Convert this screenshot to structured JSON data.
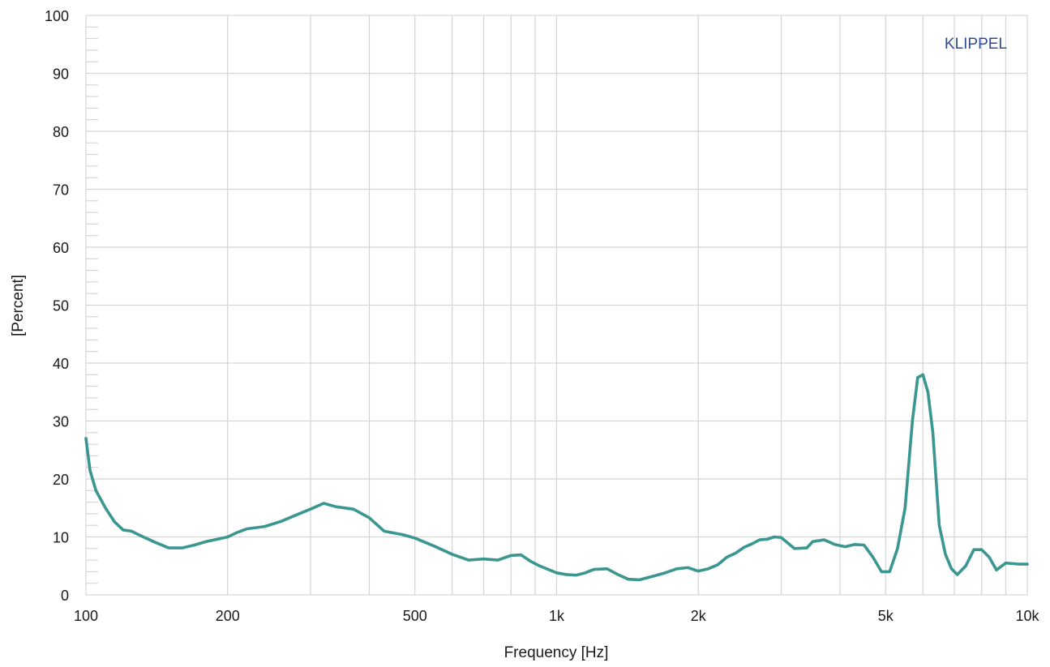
{
  "chart_data": {
    "type": "line",
    "title": "",
    "xlabel": "Frequency [Hz]",
    "ylabel": "[Percent]",
    "x_scale": "log",
    "xlim": [
      100,
      10000
    ],
    "ylim": [
      0,
      100
    ],
    "grid": true,
    "brand_label": "KLIPPEL",
    "x_ticks": [
      {
        "value": 100,
        "label": "100"
      },
      {
        "value": 200,
        "label": "200"
      },
      {
        "value": 500,
        "label": "500"
      },
      {
        "value": 1000,
        "label": "1k"
      },
      {
        "value": 2000,
        "label": "2k"
      },
      {
        "value": 5000,
        "label": "5k"
      },
      {
        "value": 10000,
        "label": "10k"
      }
    ],
    "y_ticks": [
      {
        "value": 0,
        "label": "0"
      },
      {
        "value": 10,
        "label": "10"
      },
      {
        "value": 20,
        "label": "20"
      },
      {
        "value": 30,
        "label": "30"
      },
      {
        "value": 40,
        "label": "40"
      },
      {
        "value": 50,
        "label": "50"
      },
      {
        "value": 60,
        "label": "60"
      },
      {
        "value": 70,
        "label": "70"
      },
      {
        "value": 80,
        "label": "80"
      },
      {
        "value": 90,
        "label": "90"
      },
      {
        "value": 100,
        "label": "100"
      }
    ],
    "colors": {
      "line": "#3a9690",
      "grid": "#d4d4d4",
      "brand": "#2f4a9a"
    },
    "series": [
      {
        "x": [
          100,
          102,
          105,
          110,
          115,
          120,
          125,
          130,
          140,
          150,
          160,
          170,
          180,
          190,
          200,
          210,
          220,
          240,
          260,
          280,
          300,
          320,
          340,
          370,
          400,
          430,
          470,
          500,
          550,
          600,
          650,
          700,
          750,
          800,
          840,
          880,
          920,
          1000,
          1050,
          1100,
          1150,
          1200,
          1280,
          1350,
          1420,
          1500,
          1600,
          1700,
          1800,
          1900,
          2000,
          2100,
          2200,
          2300,
          2400,
          2500,
          2600,
          2700,
          2800,
          2900,
          3000,
          3200,
          3400,
          3500,
          3700,
          3900,
          4100,
          4300,
          4500,
          4700,
          4900,
          5100,
          5300,
          5500,
          5700,
          5850,
          6000,
          6150,
          6300,
          6500,
          6700,
          6900,
          7100,
          7400,
          7700,
          8000,
          8300,
          8600,
          9000,
          9300,
          9600,
          10000
        ],
        "values": [
          27.0,
          21.5,
          18.0,
          15.0,
          12.6,
          11.2,
          11.0,
          10.3,
          9.1,
          8.1,
          8.1,
          8.6,
          9.2,
          9.6,
          10.0,
          10.8,
          11.4,
          11.8,
          12.7,
          13.8,
          14.8,
          15.8,
          15.2,
          14.8,
          13.3,
          11.0,
          10.4,
          9.8,
          8.4,
          7.0,
          6.0,
          6.2,
          6.0,
          6.8,
          6.9,
          5.8,
          5.0,
          3.8,
          3.5,
          3.4,
          3.8,
          4.4,
          4.5,
          3.5,
          2.7,
          2.6,
          3.2,
          3.8,
          4.5,
          4.7,
          4.1,
          4.5,
          5.2,
          6.5,
          7.2,
          8.2,
          8.8,
          9.5,
          9.6,
          10.0,
          9.9,
          8.0,
          8.1,
          9.2,
          9.5,
          8.7,
          8.3,
          8.7,
          8.6,
          6.5,
          4.0,
          4.0,
          8.0,
          15.0,
          30.0,
          37.5,
          38.0,
          35.0,
          28.0,
          12.0,
          7.0,
          4.5,
          3.5,
          5.0,
          7.8,
          7.8,
          6.5,
          4.3,
          5.5,
          5.4,
          5.3,
          5.3
        ]
      }
    ]
  }
}
